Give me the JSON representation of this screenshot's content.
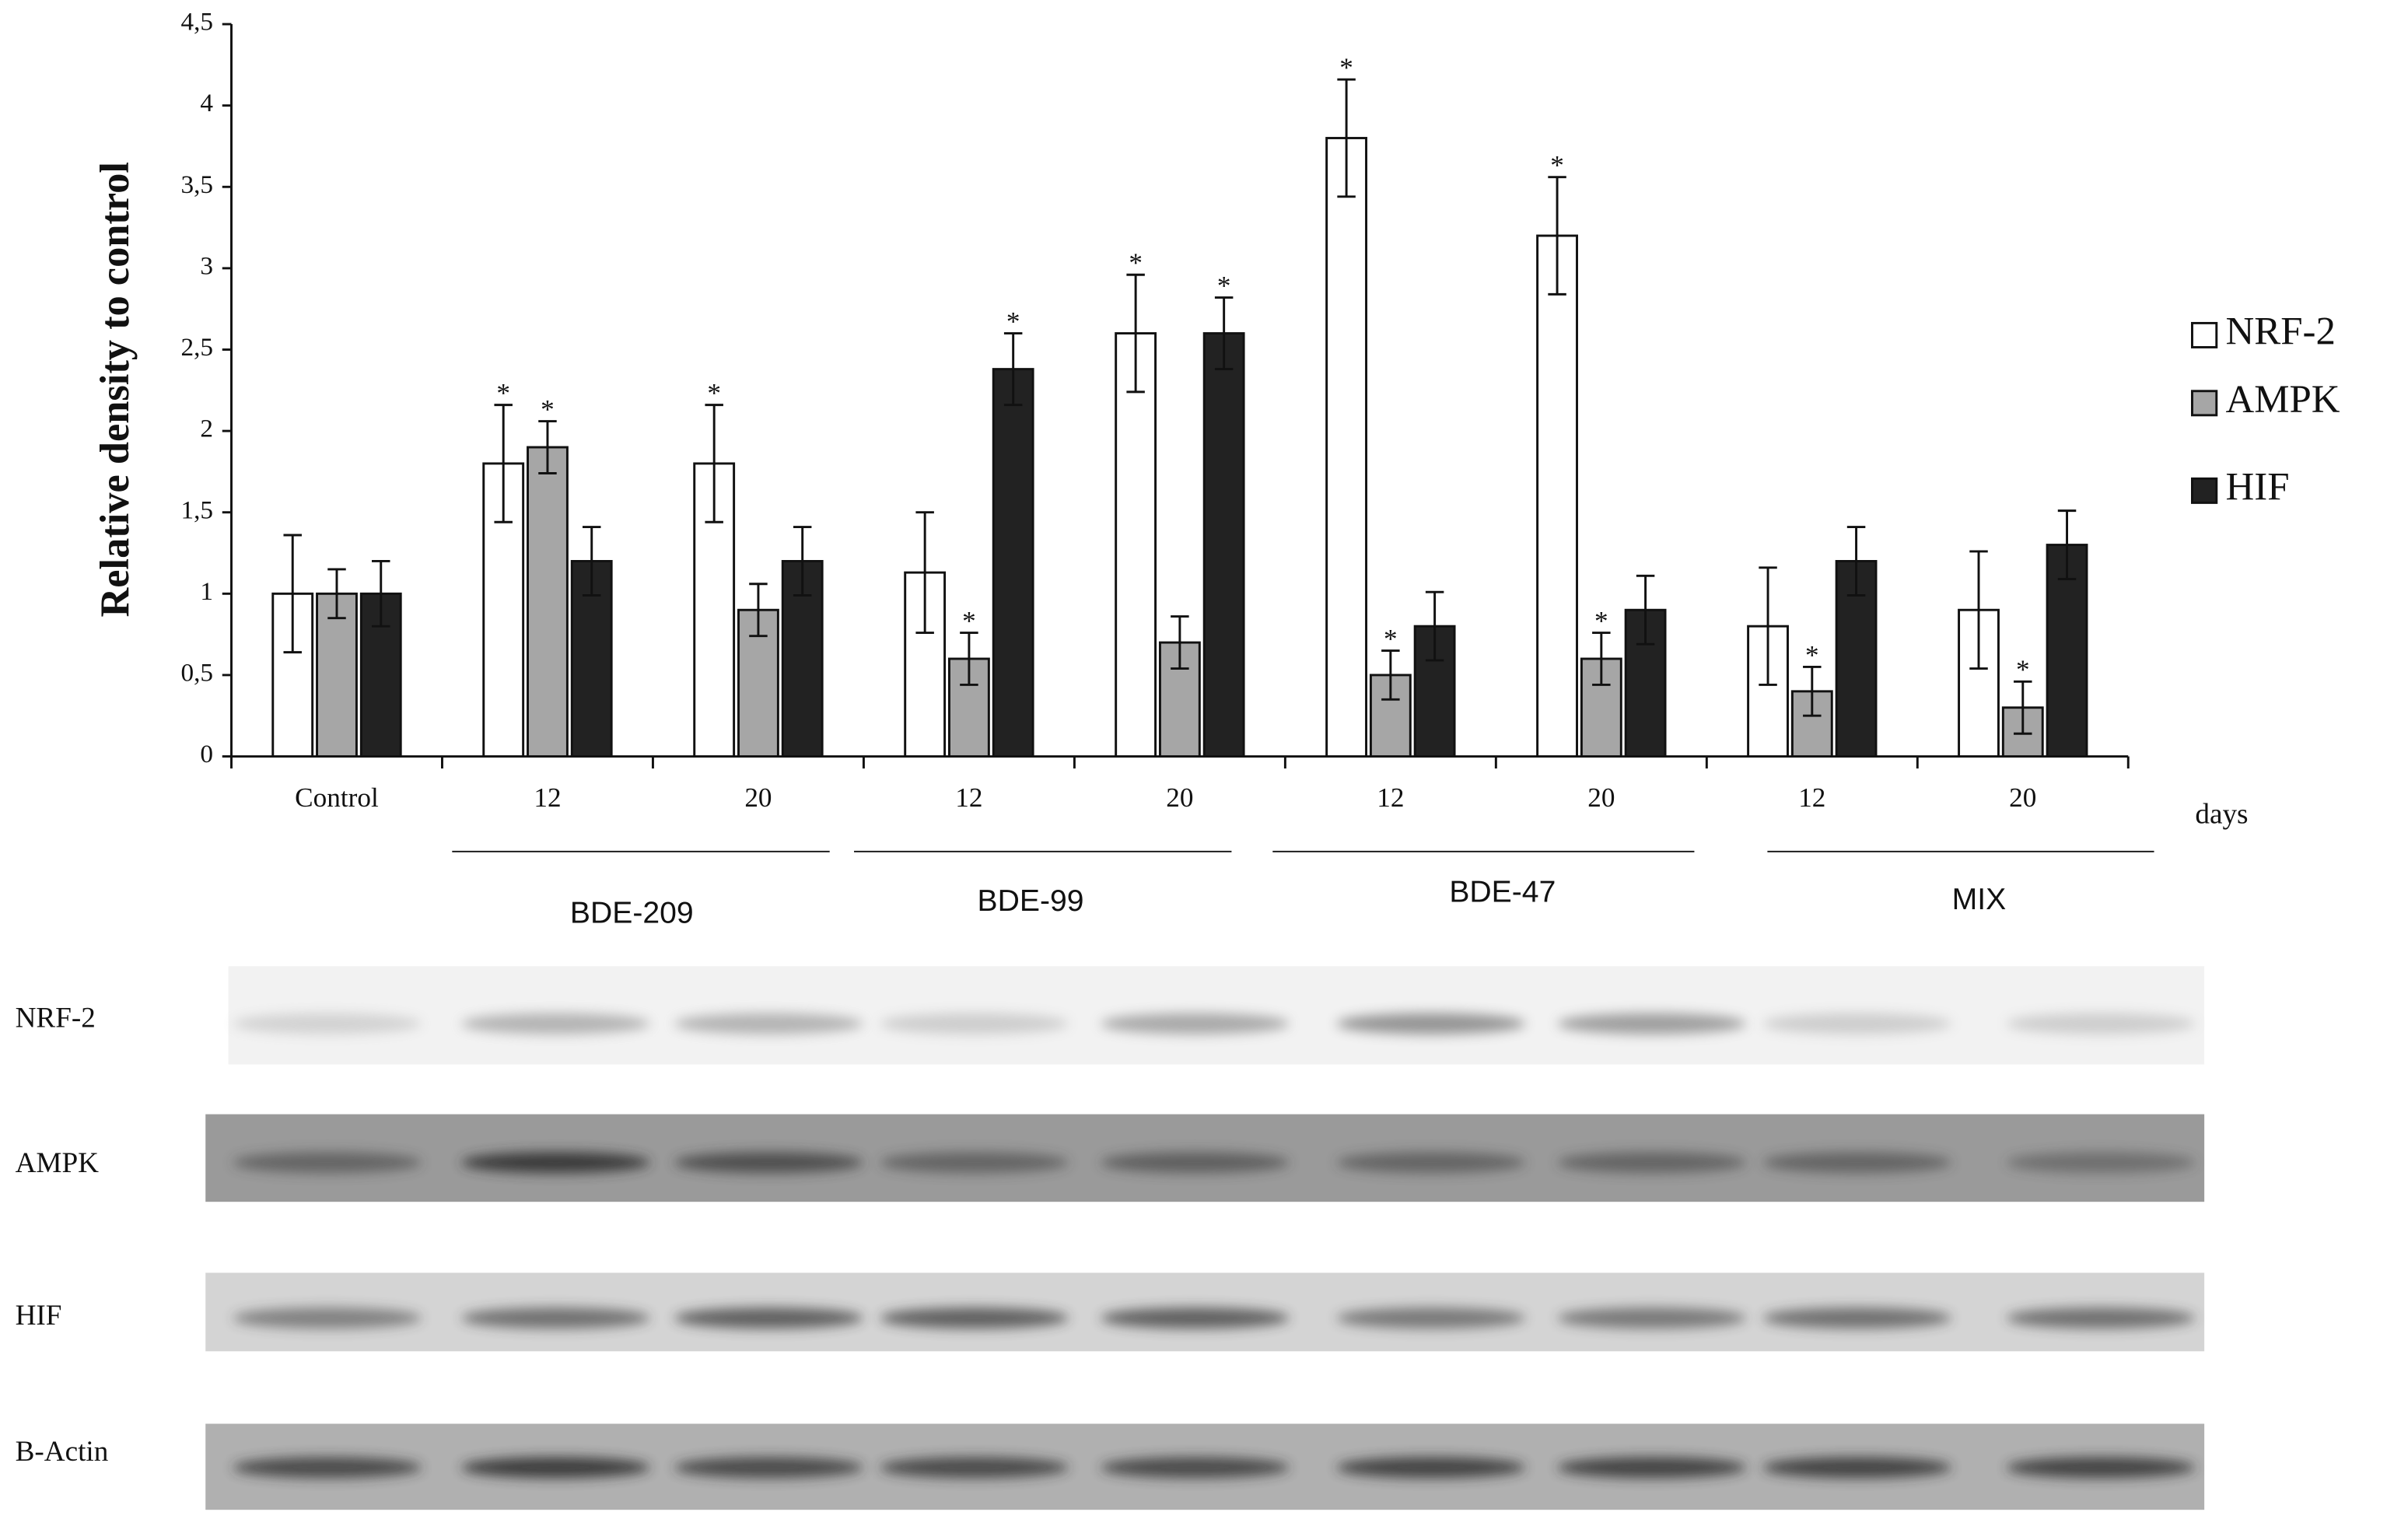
{
  "chart_data": {
    "type": "bar",
    "ylabel": "Relative density to control",
    "categories": [
      "Control",
      "12",
      "20",
      "12",
      "20",
      "12",
      "20",
      "12",
      "20"
    ],
    "x_unit": "days",
    "groups": [
      "BDE-209",
      "BDE-99",
      "BDE-47",
      "MIX"
    ],
    "ylim": [
      0,
      4.5
    ],
    "yticks": [
      0,
      {
        "value": 0.5,
        "label": "0,5"
      },
      1,
      {
        "value": 1.5,
        "label": "1,5"
      },
      2,
      {
        "value": 2.5,
        "label": "2,5"
      },
      3,
      {
        "value": 3.5,
        "label": "3,5"
      },
      4,
      {
        "value": 4.5,
        "label": "4,5"
      }
    ],
    "series": [
      {
        "name": "NRF-2",
        "color": "#ffffff",
        "values": [
          1,
          1.8,
          1.8,
          1.13,
          2.6,
          3.8,
          3.2,
          0.8,
          0.9
        ],
        "errors": [
          0.36,
          0.36,
          0.36,
          0.37,
          0.36,
          0.36,
          0.36,
          0.36,
          0.36
        ],
        "significance": [
          null,
          "*",
          "*",
          null,
          "*",
          "*",
          "*",
          null,
          null
        ]
      },
      {
        "name": "AMPK",
        "color": "#a6a6a6",
        "values": [
          1,
          1.9,
          0.9,
          0.6,
          0.7,
          0.5,
          0.6,
          0.4,
          0.3
        ],
        "errors": [
          0.15,
          0.16,
          0.16,
          0.16,
          0.16,
          0.15,
          0.16,
          0.15,
          0.16
        ],
        "significance": [
          null,
          "*",
          null,
          "*",
          null,
          "*",
          "*",
          "*",
          "*"
        ]
      },
      {
        "name": "HIF",
        "color": "#222222",
        "values": [
          1,
          1.2,
          1.2,
          2.38,
          2.6,
          0.8,
          0.9,
          1.2,
          1.3
        ],
        "errors": [
          0.2,
          0.21,
          0.21,
          0.22,
          0.22,
          0.21,
          0.21,
          0.21,
          0.21
        ],
        "significance": [
          null,
          null,
          null,
          "*",
          "*",
          null,
          null,
          null,
          null
        ]
      }
    ],
    "legend": "right"
  },
  "blot_labels": [
    "NRF-2",
    "AMPK",
    "HIF",
    "B-Actin"
  ]
}
